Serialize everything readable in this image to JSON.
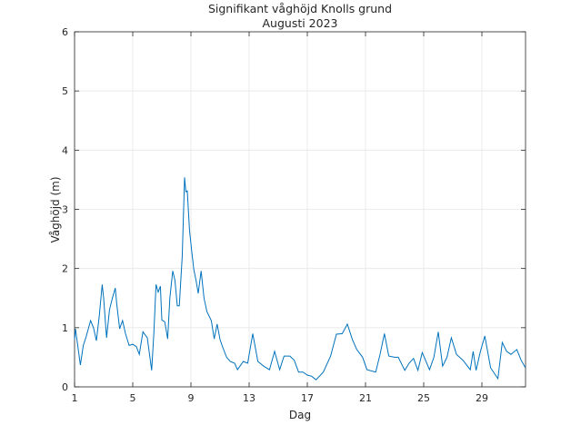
{
  "chart_data": {
    "type": "line",
    "title": "Signifikant våghöjd Knolls grund",
    "subtitle": "Augusti 2023",
    "xlabel": "Dag",
    "ylabel": "Våghöjd (m)",
    "xlim": [
      1,
      32
    ],
    "ylim": [
      0,
      6
    ],
    "xticks": [
      1,
      5,
      9,
      13,
      17,
      21,
      25,
      29
    ],
    "yticks": [
      0,
      1,
      2,
      3,
      4,
      5,
      6
    ],
    "grid": true,
    "color": "#0072BD",
    "series": [
      {
        "name": "Våghöjd",
        "x": [
          1.0,
          1.06,
          1.4,
          1.6,
          1.8,
          2.1,
          2.3,
          2.5,
          2.7,
          2.9,
          3.0,
          3.2,
          3.4,
          3.6,
          3.8,
          3.9,
          4.1,
          4.3,
          4.5,
          4.75,
          5.0,
          5.25,
          5.45,
          5.7,
          6.0,
          6.3,
          6.45,
          6.6,
          6.75,
          6.9,
          7.0,
          7.2,
          7.4,
          7.55,
          7.75,
          7.9,
          8.06,
          8.2,
          8.4,
          8.56,
          8.65,
          8.75,
          8.9,
          9.05,
          9.2,
          9.35,
          9.5,
          9.7,
          9.9,
          10.1,
          10.4,
          10.6,
          10.8,
          11.0,
          11.2,
          11.45,
          11.7,
          12.0,
          12.2,
          12.6,
          12.9,
          13.25,
          13.6,
          14.0,
          14.4,
          14.75,
          15.1,
          15.4,
          15.8,
          16.1,
          16.4,
          16.7,
          17.0,
          17.3,
          17.6,
          18.1,
          18.6,
          19.0,
          19.4,
          19.75,
          20.1,
          20.4,
          20.8,
          21.1,
          21.7,
          22.0,
          22.3,
          22.6,
          23.0,
          23.25,
          23.7,
          24.0,
          24.3,
          24.6,
          24.9,
          25.4,
          25.7,
          26.0,
          26.3,
          26.6,
          26.9,
          27.25,
          27.7,
          28.2,
          28.4,
          28.6,
          28.9,
          29.2,
          29.6,
          30.1,
          30.4,
          30.7,
          31.0,
          31.4,
          31.7,
          32.0
        ],
        "y": [
          0.8,
          0.98,
          0.37,
          0.7,
          0.85,
          1.12,
          1.0,
          0.78,
          1.2,
          1.73,
          1.5,
          0.83,
          1.3,
          1.5,
          1.67,
          1.4,
          0.98,
          1.12,
          0.9,
          0.7,
          0.72,
          0.68,
          0.55,
          0.93,
          0.83,
          0.28,
          0.9,
          1.73,
          1.6,
          1.7,
          1.13,
          1.1,
          0.81,
          1.5,
          1.96,
          1.8,
          1.37,
          1.37,
          2.2,
          3.54,
          3.3,
          3.31,
          2.65,
          2.3,
          1.98,
          1.8,
          1.58,
          1.96,
          1.5,
          1.27,
          1.12,
          0.81,
          1.06,
          0.8,
          0.66,
          0.5,
          0.43,
          0.4,
          0.29,
          0.43,
          0.4,
          0.9,
          0.43,
          0.35,
          0.29,
          0.6,
          0.29,
          0.52,
          0.52,
          0.45,
          0.25,
          0.25,
          0.2,
          0.18,
          0.12,
          0.25,
          0.52,
          0.89,
          0.9,
          1.06,
          0.8,
          0.63,
          0.5,
          0.29,
          0.25,
          0.55,
          0.9,
          0.52,
          0.5,
          0.5,
          0.28,
          0.4,
          0.48,
          0.28,
          0.58,
          0.29,
          0.5,
          0.93,
          0.35,
          0.5,
          0.83,
          0.55,
          0.45,
          0.29,
          0.6,
          0.28,
          0.6,
          0.86,
          0.32,
          0.14,
          0.75,
          0.6,
          0.55,
          0.63,
          0.45,
          0.32
        ]
      }
    ]
  }
}
